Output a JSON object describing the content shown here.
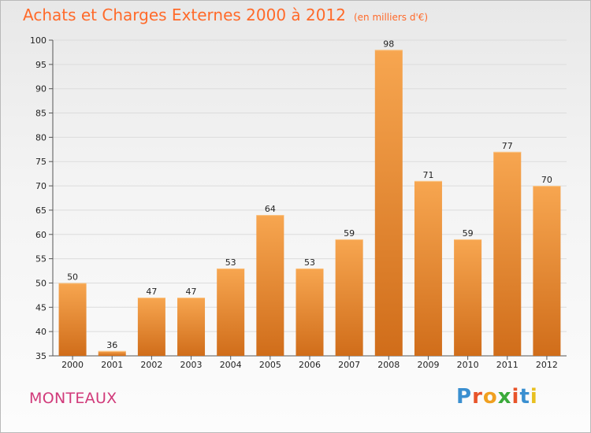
{
  "header": {
    "title": "Achats et Charges Externes 2000 à 2012",
    "unit": "(en milliers d'€)"
  },
  "footer": {
    "commune": "MONTEAUX",
    "logo_text": "Proxiti",
    "logo_letters": [
      "P",
      "r",
      "o",
      "x",
      "i",
      "t",
      "i"
    ]
  },
  "colors": {
    "title": "#ff6a2a",
    "commune": "#d13a7a",
    "bar_light": "#f7a650",
    "bar_dark": "#d06d1a",
    "logo": [
      "#3a8fd0",
      "#e8542a",
      "#f0a020",
      "#3aaa3a",
      "#e8542a",
      "#3a8fd0",
      "#e8c020"
    ]
  },
  "chart_data": {
    "type": "bar",
    "title": "Achats et Charges Externes 2000 à 2012",
    "categories": [
      "2000",
      "2001",
      "2002",
      "2003",
      "2004",
      "2005",
      "2006",
      "2007",
      "2008",
      "2009",
      "2010",
      "2011",
      "2012"
    ],
    "values": [
      50,
      36,
      47,
      47,
      53,
      64,
      53,
      59,
      98,
      71,
      59,
      77,
      70
    ],
    "ylim": [
      35,
      100
    ],
    "yticks": [
      35,
      40,
      45,
      50,
      55,
      60,
      65,
      70,
      75,
      80,
      85,
      90,
      95,
      100
    ],
    "grid": true,
    "xlabel": "",
    "ylabel": ""
  }
}
